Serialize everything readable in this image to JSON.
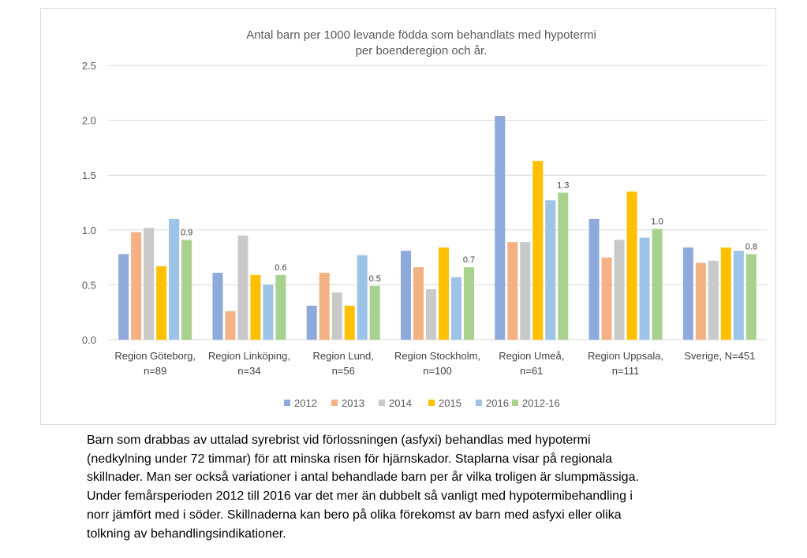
{
  "chart_data": {
    "type": "bar",
    "title_lines": [
      "Antal barn per 1000 levande födda som behandlats med hypotermi",
      "per boenderegion och år."
    ],
    "categories": [
      [
        "Region Göteborg,",
        "n=89"
      ],
      [
        "Region Linköping,",
        "n=34"
      ],
      [
        "Region Lund,",
        "n=56"
      ],
      [
        "Region Stockholm,",
        "n=100"
      ],
      [
        "Region Umeå,",
        "n=61"
      ],
      [
        "Region Uppsala,",
        "n=111"
      ],
      [
        "Sverige, N=451"
      ]
    ],
    "series": [
      {
        "name": "2012",
        "color": "#8ea9db",
        "values": [
          0.78,
          0.61,
          0.31,
          0.81,
          2.04,
          1.1,
          0.84
        ]
      },
      {
        "name": "2013",
        "color": "#f4b183",
        "values": [
          0.98,
          0.26,
          0.61,
          0.66,
          0.89,
          0.75,
          0.7
        ]
      },
      {
        "name": "2014",
        "color": "#c9c9c9",
        "values": [
          1.02,
          0.95,
          0.43,
          0.46,
          0.89,
          0.91,
          0.72
        ]
      },
      {
        "name": "2015",
        "color": "#ffc000",
        "values": [
          0.67,
          0.59,
          0.31,
          0.84,
          1.63,
          1.35,
          0.84
        ]
      },
      {
        "name": "2016",
        "color": "#9dc3e6",
        "values": [
          1.1,
          0.5,
          0.77,
          0.57,
          1.27,
          0.93,
          0.81
        ]
      },
      {
        "name": "2012-16",
        "color": "#a9d18e",
        "values": [
          0.91,
          0.59,
          0.49,
          0.66,
          1.34,
          1.01,
          0.78
        ],
        "data_labels": [
          "0.9",
          "0.6",
          "0.5",
          "0.7",
          "1.3",
          "1.0",
          "0.8"
        ]
      }
    ],
    "y_ticks": [
      "0.0",
      "0.5",
      "1.0",
      "1.5",
      "2.0",
      "2.5"
    ],
    "ylim": [
      0,
      2.5
    ],
    "grid": true,
    "legend_position": "bottom"
  },
  "caption_lines": [
    "Barn som drabbas av uttalad syrebrist vid förlossningen (asfyxi) behandlas med hypotermi",
    "(nedkylning under 72 timmar) för att minska risen för hjärnskador. Staplarna visar på regionala",
    "skillnader. Man ser också variationer i antal behandlade barn per år vilka troligen är slumpmässiga.",
    "Under femårsperioden 2012 till 2016 var det mer än dubbelt så vanligt med hypotermibehandling i",
    "norr jämfört med i söder. Skillnaderna kan bero på olika förekomst av barn med asfyxi eller olika",
    "tolkning av behandlingsindikationer."
  ]
}
